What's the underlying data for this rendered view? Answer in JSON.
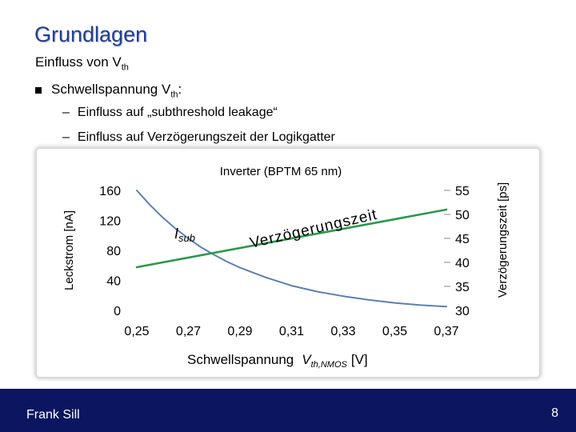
{
  "slide": {
    "title": "Grundlagen",
    "subtitle_main": "Einfluss von V",
    "subtitle_sub": "th",
    "bullet_main": "Schwellspannung V",
    "bullet_sub": "th",
    "bullet_after": ":",
    "sub_bullets": [
      "Einfluss auf „subthreshold leakage“",
      "Einfluss auf Verzögerungszeit der Logikgatter"
    ],
    "dash": "–",
    "footer_name": "Frank Sill",
    "page_number": "8"
  },
  "chart_data": {
    "type": "line",
    "title": "Inverter (BPTM 65 nm)",
    "xlabel_main": "Schwellspannung",
    "xlabel_symbol": "V",
    "xlabel_sub": "th,NMOS",
    "xlabel_unit": "[V]",
    "ylabel_left": "Leckstrom [nA]",
    "ylabel_right": "Verzögerungszeit [ps]",
    "xlim": [
      0.25,
      0.37
    ],
    "ylim_left": [
      0,
      160
    ],
    "ylim_right": [
      30,
      55
    ],
    "x_ticks": [
      "0,25",
      "0,27",
      "0,29",
      "0,31",
      "0,33",
      "0,35",
      "0,37"
    ],
    "y_left_ticks": [
      "0",
      "40",
      "80",
      "120",
      "160"
    ],
    "y_right_ticks": [
      "30",
      "35",
      "40",
      "45",
      "50",
      "55"
    ],
    "series": [
      {
        "name": "Isub",
        "label_main": "I",
        "label_sub": "sub",
        "axis": "left",
        "color": "#5a7fb5",
        "x": [
          0.25,
          0.255,
          0.26,
          0.265,
          0.27,
          0.275,
          0.28,
          0.285,
          0.29,
          0.3,
          0.31,
          0.32,
          0.33,
          0.34,
          0.35,
          0.36,
          0.37
        ],
        "y": [
          160,
          141,
          124,
          109,
          96,
          84,
          74,
          65,
          57,
          44,
          33,
          25,
          19,
          14,
          10,
          7,
          5
        ]
      },
      {
        "name": "Verzögerungszeit",
        "label": "Verzögerungszeit",
        "axis": "right",
        "color": "#2a9a4c",
        "x": [
          0.25,
          0.37
        ],
        "y": [
          39,
          51
        ]
      }
    ]
  }
}
